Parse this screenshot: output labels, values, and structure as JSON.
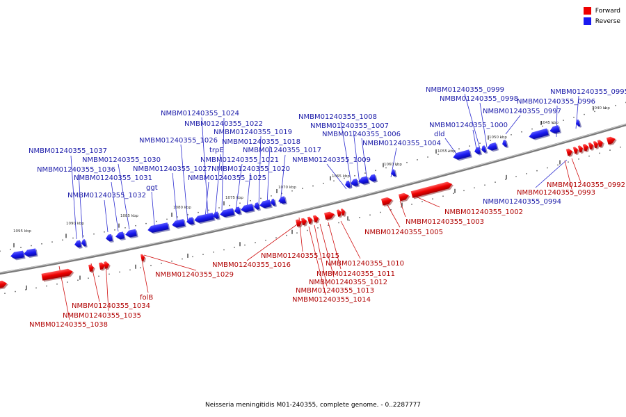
{
  "legend": {
    "forward": {
      "label": "Forward",
      "color": "#ee0000"
    },
    "reverse": {
      "label": "Reverse",
      "color": "#1a1af0"
    }
  },
  "caption": "Neisseria meningitidis M01-240355, complete genome. - 0..2287777",
  "ticks": [
    "1040 kbp",
    "1045 kbp",
    "1050 kbp",
    "1055 kbp",
    "1060 kbp",
    "1065 kbp",
    "1070 kbp",
    "1075 kbp",
    "1080 kbp",
    "1085 kbp",
    "1090 kbp",
    "1095 kbp"
  ],
  "reverse_labels": [
    "NMBM01240355_0995",
    "NMBM01240355_0996",
    "NMBM01240355_0997",
    "NMBM01240355_0998",
    "NMBM01240355_0999",
    "NMBM01240355_1000",
    "dld",
    "NMBM01240355_1004",
    "NMBM01240355_1006",
    "NMBM01240355_1007",
    "NMBM01240355_1008",
    "NMBM01240355_1009",
    "NMBM01240355_1017",
    "NMBM01240355_1018",
    "NMBM01240355_1019",
    "NMBM01240355_1020",
    "NMBM01240355_1021",
    "NMBM01240355_1022",
    "NMBM01240355_1024",
    "trpE",
    "NMBM01240355_1025",
    "NMBM01240355_1026",
    "NMBM01240355_1027",
    "ggt",
    "NMBM01240355_1030",
    "NMBM01240355_1031",
    "NMBM01240355_1032",
    "NMBM01240355_1036",
    "NMBM01240355_1037",
    "NMBM01240355_0994"
  ],
  "forward_labels": [
    "NMBM01240355_0992",
    "NMBM01240355_0993",
    "NMBM01240355_1002",
    "NMBM01240355_1003",
    "NMBM01240355_1005",
    "NMBM01240355_1015",
    "NMBM01240355_1016",
    "NMBM01240355_1010",
    "NMBM01240355_1011",
    "NMBM01240355_1012",
    "NMBM01240355_1013",
    "NMBM01240355_1014",
    "NMBM01240355_1029",
    "folB",
    "NMBM01240355_1034",
    "NMBM01240355_1035",
    "NMBM01240355_1038"
  ]
}
